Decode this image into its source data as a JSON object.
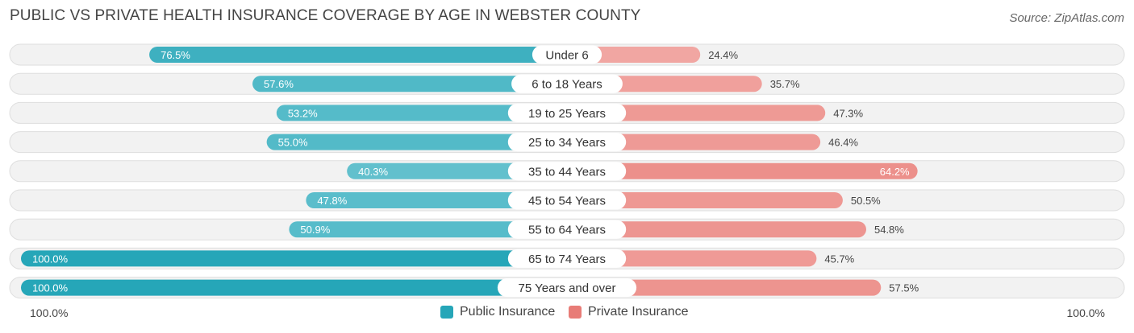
{
  "header": {
    "title": "PUBLIC VS PRIVATE HEALTH INSURANCE COVERAGE BY AGE IN WEBSTER COUNTY",
    "source": "Source: ZipAtlas.com"
  },
  "colors": {
    "public_dark": "#26a6b8",
    "public_light": "#8ad2dc",
    "private_dark": "#e87c77",
    "private_light": "#f4b4b0",
    "row_bg": "#f2f2f2",
    "row_border": "#dedede"
  },
  "axis": {
    "left_label": "100.0%",
    "right_label": "100.0%"
  },
  "chart_data": {
    "type": "bar",
    "orientation": "horizontal-diverging",
    "categories": [
      "Under 6",
      "6 to 18 Years",
      "19 to 25 Years",
      "25 to 34 Years",
      "35 to 44 Years",
      "45 to 54 Years",
      "55 to 64 Years",
      "65 to 74 Years",
      "75 Years and over"
    ],
    "series": [
      {
        "name": "Public Insurance",
        "values": [
          76.5,
          57.6,
          53.2,
          55.0,
          40.3,
          47.8,
          50.9,
          100.0,
          100.0
        ]
      },
      {
        "name": "Private Insurance",
        "values": [
          24.4,
          35.7,
          47.3,
          46.4,
          64.2,
          50.5,
          54.8,
          45.7,
          57.5
        ]
      }
    ],
    "value_labels": {
      "public": [
        "76.5%",
        "57.6%",
        "53.2%",
        "55.0%",
        "40.3%",
        "47.8%",
        "50.9%",
        "100.0%",
        "100.0%"
      ],
      "private": [
        "24.4%",
        "35.7%",
        "47.3%",
        "46.4%",
        "64.2%",
        "50.5%",
        "54.8%",
        "45.7%",
        "57.5%"
      ]
    },
    "xlim": [
      0,
      100
    ],
    "legend_position": "bottom-center"
  },
  "legend": {
    "public_label": "Public Insurance",
    "private_label": "Private Insurance"
  }
}
